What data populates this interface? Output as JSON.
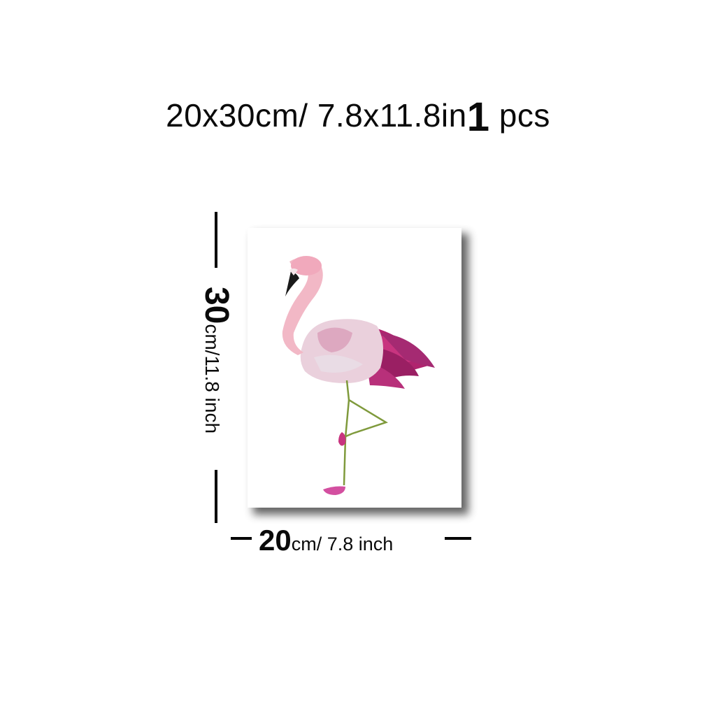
{
  "header": {
    "size_prefix": "20x30cm/ 7.8x11.8in",
    "quantity": "1",
    "quantity_unit": "pcs"
  },
  "vertical_dimension": {
    "value": "30",
    "unit_text": "cm/11.8 inch"
  },
  "horizontal_dimension": {
    "value": "20",
    "unit_text": "cm/ 7.8 inch"
  },
  "colors": {
    "neck_pink": "#f2b8c6",
    "body_light": "#ead0dc",
    "wing_magenta": "#b0246e",
    "beak_black": "#1a1a1a",
    "leg_green": "#7f9a3c",
    "shadow": "#4a4a4a"
  },
  "artwork": {
    "subject_icon": "flamingo-icon"
  }
}
